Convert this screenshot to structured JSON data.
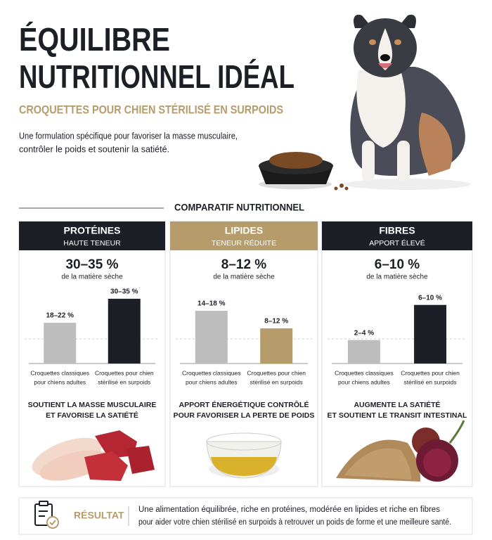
{
  "header": {
    "title_line1": "ÉQUILIBRE",
    "title_line2": "NUTRITIONNEL IDÉAL",
    "subtitle": "CROQUETTES POUR CHIEN STÉRILISÉ EN SURPOIDS",
    "description_line1": "Une formulation spécifique pour favoriser la masse musculaire,",
    "description_line2": "contrôler le poids et soutenir la satiété."
  },
  "section_title": "COMPARATIF NUTRITIONNEL",
  "panels": [
    {
      "title": "PROTÉINES",
      "subtitle": "HAUTE TENEUR",
      "header_color": "#1c1f26",
      "headline": "30–35 %",
      "headline_note": "de la matière sèche",
      "chart": {
        "categories": [
          [
            "Croquettes classiques",
            "pour chiens adultes"
          ],
          [
            "Croquettes pour chien",
            "stérilisé en surpoids"
          ]
        ],
        "values": [
          22,
          35
        ],
        "value_labels": [
          "18–22 %",
          "30–35 %"
        ],
        "colors": [
          "#bdbdbd",
          "#1c1f26"
        ],
        "ylim": [
          0,
          38
        ]
      },
      "benefit_line1": "SOUTIENT LA MASSE MUSCULAIRE",
      "benefit_line2": "ET FAVORISE LA SATIÉTÉ"
    },
    {
      "title": "LIPIDES",
      "subtitle": "TENEUR RÉDUITE",
      "header_color": "#b59c6a",
      "headline": "8–12 %",
      "headline_note": "de la matière sèche",
      "chart": {
        "categories": [
          [
            "Croquettes classiques",
            "pour chiens adultes"
          ],
          [
            "Croquettes pour chien",
            "stérilisé en surpoids"
          ]
        ],
        "values": [
          18,
          12
        ],
        "value_labels": [
          "14–18 %",
          "8–12 %"
        ],
        "colors": [
          "#bdbdbd",
          "#b59c6a"
        ],
        "ylim": [
          0,
          24
        ]
      },
      "benefit_line1": "APPORT ÉNERGÉTIQUE CONTRÔLÉ",
      "benefit_line2": "POUR FAVORISER LA PERTE DE POIDS"
    },
    {
      "title": "FIBRES",
      "subtitle": "APPORT ÉLEVÉ",
      "header_color": "#1c1f26",
      "headline": "6–10 %",
      "headline_note": "de la matière sèche",
      "chart": {
        "categories": [
          [
            "Croquettes classiques",
            "pour chiens adultes"
          ],
          [
            "Croquettes pour chien",
            "stérilisé en surpoids"
          ]
        ],
        "values": [
          4,
          10
        ],
        "value_labels": [
          "2–4 %",
          "6–10 %"
        ],
        "colors": [
          "#bdbdbd",
          "#1c1f26"
        ],
        "ylim": [
          0,
          12
        ]
      },
      "benefit_line1": "AUGMENTE LA SATIÉTÉ",
      "benefit_line2": "ET SOUTIENT LE TRANSIT INTESTINAL"
    }
  ],
  "result": {
    "label": "RÉSULTAT",
    "text_line1": "Une alimentation équilibrée, riche en protéines, modérée en lipides et riche en fibres",
    "text_line2": "pour aider votre chien stérilisé en surpoids à retrouver un poids de forme et une meilleure santé."
  }
}
